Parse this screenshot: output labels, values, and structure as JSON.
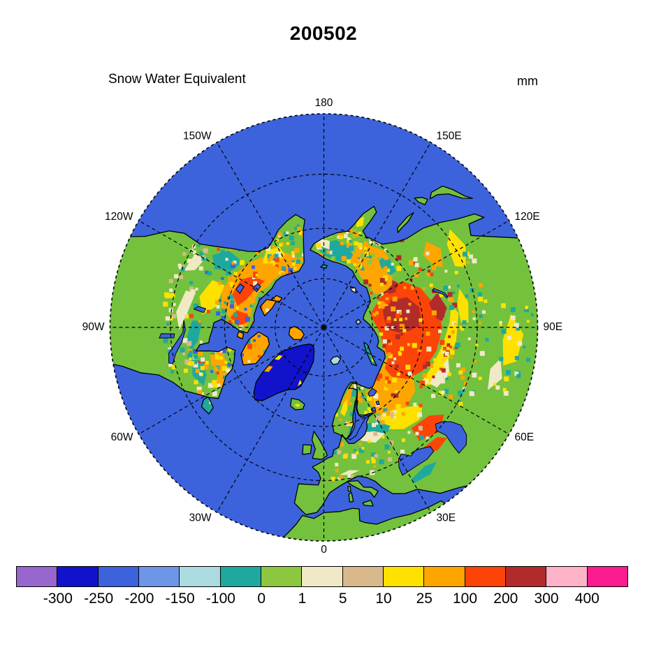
{
  "title": "200502",
  "map": {
    "label": "Snow Water Equivalent",
    "units": "mm",
    "meridians": [
      {
        "label": "180",
        "lon": 180
      },
      {
        "label": "150W",
        "lon": -150
      },
      {
        "label": "150E",
        "lon": 150
      },
      {
        "label": "120W",
        "lon": -120
      },
      {
        "label": "120E",
        "lon": 120
      },
      {
        "label": "90W",
        "lon": -90
      },
      {
        "label": "90E",
        "lon": 90
      },
      {
        "label": "60W",
        "lon": -60
      },
      {
        "label": "60E",
        "lon": 60
      },
      {
        "label": "30W",
        "lon": -30
      },
      {
        "label": "30E",
        "lon": 30
      },
      {
        "label": "0",
        "lon": 0
      }
    ],
    "latitude_circles_deg": [
      75,
      60,
      45
    ],
    "ocean_color": "#3C63DC",
    "land_color": "#74C13D",
    "greenland_color": "#1113CB"
  },
  "colorbar": {
    "labels": [
      "-300",
      "-250",
      "-200",
      "-150",
      "-100",
      "0",
      "1",
      "5",
      "10",
      "25",
      "100",
      "200",
      "300",
      "400"
    ],
    "colors": [
      "#9766CE",
      "#1113CB",
      "#3C63DC",
      "#6D96E9",
      "#ABDBE1",
      "#1FA99E",
      "#8DC73F",
      "#F1E9C5",
      "#D9B98C",
      "#FFE100",
      "#FFA500",
      "#FC4408",
      "#B22B2B",
      "#FFB3C8",
      "#FB1C8F"
    ]
  }
}
